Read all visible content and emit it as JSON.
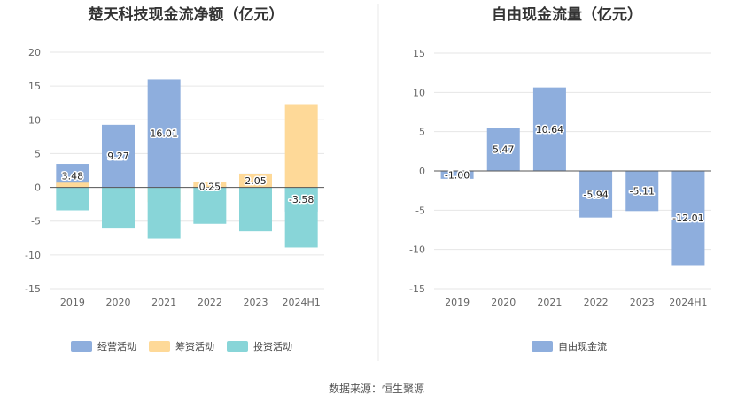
{
  "source": "数据来源：恒生聚源",
  "colors": {
    "operating": "#8eaedd",
    "financing": "#fed998",
    "investing": "#88d5d8",
    "free_cash_flow": "#8eaedd",
    "grid": "#e6e6e6",
    "zero_line": "#555555",
    "divider": "#e8e8e8"
  },
  "chart_data": [
    {
      "type": "bar",
      "stacked": true,
      "title": "楚天科技现金流净额（亿元）",
      "categories": [
        "2019",
        "2020",
        "2021",
        "2022",
        "2023",
        "2024H1"
      ],
      "ylim": [
        -15,
        20
      ],
      "yticks": [
        20,
        15,
        10,
        5,
        0,
        -5,
        -10,
        -15
      ],
      "grid": true,
      "legend_position": "bottom",
      "series": [
        {
          "name": "经营活动",
          "values": [
            3.48,
            9.27,
            16.01,
            0.25,
            2.05,
            -3.58
          ],
          "labels": [
            "3.48",
            "9.27",
            "16.01",
            "0.25",
            "2.05",
            "-3.58"
          ]
        },
        {
          "name": "筹资活动",
          "values": [
            0.7,
            -3.7,
            -2.2,
            0.85,
            1.95,
            12.2
          ]
        },
        {
          "name": "投资活动",
          "values": [
            -3.4,
            -6.1,
            -7.6,
            -5.4,
            -6.5,
            -8.9
          ]
        }
      ]
    },
    {
      "type": "bar",
      "title": "自由现金流量（亿元）",
      "categories": [
        "2019",
        "2020",
        "2021",
        "2022",
        "2023",
        "2024H1"
      ],
      "ylim": [
        -15,
        15
      ],
      "yticks": [
        15,
        10,
        5,
        0,
        -5,
        -10,
        -15
      ],
      "grid": true,
      "legend_position": "bottom",
      "series": [
        {
          "name": "自由现金流",
          "values": [
            -1.0,
            5.47,
            10.64,
            -5.94,
            -5.11,
            -12.01
          ],
          "labels": [
            "-1.00",
            "5.47",
            "10.64",
            "-5.94",
            "-5.11",
            "-12.01"
          ]
        }
      ]
    }
  ]
}
